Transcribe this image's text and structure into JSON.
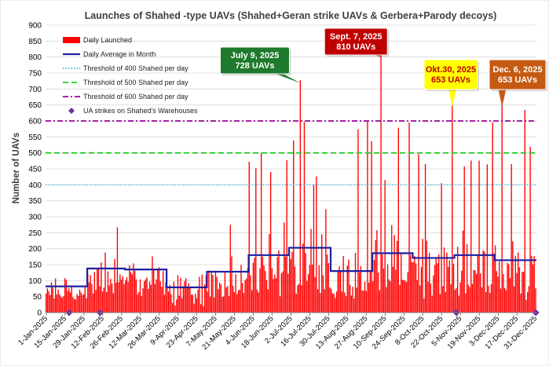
{
  "chart_data": {
    "type": "bar",
    "title": "Launches of Shahed -type  UAVs (Shahed+Geran strike UAVs & Gerbera+Parody decoys)",
    "ylabel": "Number of UAVs",
    "xlabel": "",
    "ylim": [
      0,
      900
    ],
    "yticks": [
      0,
      50,
      100,
      150,
      200,
      250,
      300,
      350,
      400,
      450,
      500,
      550,
      600,
      650,
      700,
      750,
      800,
      850,
      900
    ],
    "xlim": [
      "2025-01-01",
      "2025-12-31"
    ],
    "x_tick_labels": [
      "1-Jan-2025",
      "15-Jan-2025",
      "29-Jan-2025",
      "12-Feb-2025",
      "26-Feb-2025",
      "12-Mar-2025",
      "26-Mar-2025",
      "9-Apr-2025",
      "23-Apr-2025",
      "7-May-2025",
      "21-May-2025",
      "4-Jun-2025",
      "18-Jun-2025",
      "2-Jul-2025",
      "16-Jul-2025",
      "30-Jul-2025",
      "13-Aug-2025",
      "27-Aug-2025",
      "10-Sep-2025",
      "24-Sep-2025",
      "8-Oct-2025",
      "22-Oct-2025",
      "5-Nov-2025",
      "19-Nov-2025",
      "3-Dec-2025",
      "17-Dec-2025",
      "31-Dec-2025"
    ],
    "series": [
      {
        "name": "Daily Launched",
        "kind": "bar",
        "color": "#ff0000",
        "monthly_typical_range": [
          {
            "month": "Jan",
            "low": 40,
            "high": 120
          },
          {
            "month": "Feb",
            "low": 60,
            "high": 200
          },
          {
            "month": "Mar",
            "low": 50,
            "high": 190
          },
          {
            "month": "Apr",
            "low": 20,
            "high": 150
          },
          {
            "month": "May",
            "low": 40,
            "high": 200
          },
          {
            "month": "Jun",
            "low": 50,
            "high": 300
          },
          {
            "month": "Jul",
            "low": 50,
            "high": 330
          },
          {
            "month": "Aug",
            "low": 40,
            "high": 220
          },
          {
            "month": "Sep",
            "low": 60,
            "high": 300
          },
          {
            "month": "Oct",
            "low": 40,
            "high": 280
          },
          {
            "month": "Nov",
            "low": 50,
            "high": 280
          },
          {
            "month": "Dec",
            "low": 40,
            "high": 260
          }
        ],
        "peaks": [
          {
            "date": "2025-02-23",
            "value": 267
          },
          {
            "date": "2025-05-18",
            "value": 275
          },
          {
            "date": "2025-06-01",
            "value": 472
          },
          {
            "date": "2025-06-06",
            "value": 452
          },
          {
            "date": "2025-06-10",
            "value": 499
          },
          {
            "date": "2025-06-17",
            "value": 440
          },
          {
            "date": "2025-06-29",
            "value": 477
          },
          {
            "date": "2025-07-04",
            "value": 539
          },
          {
            "date": "2025-07-09",
            "value": 728
          },
          {
            "date": "2025-07-12",
            "value": 597
          },
          {
            "date": "2025-07-19",
            "value": 400
          },
          {
            "date": "2025-07-21",
            "value": 426
          },
          {
            "date": "2025-07-28",
            "value": 324
          },
          {
            "date": "2025-08-21",
            "value": 574
          },
          {
            "date": "2025-08-28",
            "value": 598
          },
          {
            "date": "2025-08-31",
            "value": 537
          },
          {
            "date": "2025-09-07",
            "value": 810
          },
          {
            "date": "2025-09-10",
            "value": 415
          },
          {
            "date": "2025-09-20",
            "value": 579
          },
          {
            "date": "2025-09-28",
            "value": 595
          },
          {
            "date": "2025-10-05",
            "value": 496
          },
          {
            "date": "2025-10-10",
            "value": 465
          },
          {
            "date": "2025-10-22",
            "value": 405
          },
          {
            "date": "2025-10-30",
            "value": 653
          },
          {
            "date": "2025-11-08",
            "value": 458
          },
          {
            "date": "2025-11-13",
            "value": 476
          },
          {
            "date": "2025-11-19",
            "value": 476
          },
          {
            "date": "2025-11-25",
            "value": 464
          },
          {
            "date": "2025-11-29",
            "value": 596
          },
          {
            "date": "2025-12-06",
            "value": 653
          },
          {
            "date": "2025-12-13",
            "value": 465
          },
          {
            "date": "2025-12-23",
            "value": 635
          },
          {
            "date": "2025-12-27",
            "value": 519
          }
        ]
      },
      {
        "name": "Daily Average in Month",
        "kind": "step",
        "color": "#1f1fa0",
        "values": [
          {
            "month": "Jan",
            "value": 82
          },
          {
            "month": "Feb",
            "value": 138
          },
          {
            "month": "Mar",
            "value": 135
          },
          {
            "month": "Apr",
            "value": 79
          },
          {
            "month": "May",
            "value": 128
          },
          {
            "month": "Jun",
            "value": 180
          },
          {
            "month": "Jul",
            "value": 203
          },
          {
            "month": "Aug",
            "value": 130
          },
          {
            "month": "Sep",
            "value": 186
          },
          {
            "month": "Oct",
            "value": 171
          },
          {
            "month": "Nov",
            "value": 180
          },
          {
            "month": "Dec",
            "value": 164
          }
        ]
      },
      {
        "name": "Threshold of 400 Shahed per day",
        "kind": "hline",
        "value": 400,
        "color": "#33b2e6"
      },
      {
        "name": "Threshold of 500 Shahed per day",
        "kind": "hline",
        "value": 500,
        "color": "#22cc22"
      },
      {
        "name": "Threshold of 600 Shahed per day",
        "kind": "hline",
        "value": 600,
        "color": "#990099"
      },
      {
        "name": "UA strikes on Shahed's Warehouses",
        "kind": "marker",
        "color": "#7030a0",
        "dates": [
          "2025-01-18",
          "2025-02-10",
          "2025-11-02",
          "2025-12-31"
        ],
        "value": 0
      }
    ],
    "legend_position": "top-left",
    "annotations": [
      {
        "line1": "July 9, 2025",
        "line2": "728 UAVs",
        "date": "2025-07-09",
        "value": 728,
        "fill": "#1e7a2c",
        "text_color": "#ffffff"
      },
      {
        "line1": "Sept. 7, 2025",
        "line2": "810 UAVs",
        "date": "2025-09-07",
        "value": 810,
        "fill": "#c00000",
        "text_color": "#ffffff"
      },
      {
        "line1": "Okt.30, 2025",
        "line2": "653 UAVs",
        "date": "2025-10-30",
        "value": 653,
        "fill": "#ffff00",
        "text_color": "#c00000"
      },
      {
        "line1": "Dec. 6, 2025",
        "line2": "653 UAVs",
        "date": "2025-12-06",
        "value": 653,
        "fill": "#c55a11",
        "text_color": "#ffffff"
      }
    ]
  }
}
